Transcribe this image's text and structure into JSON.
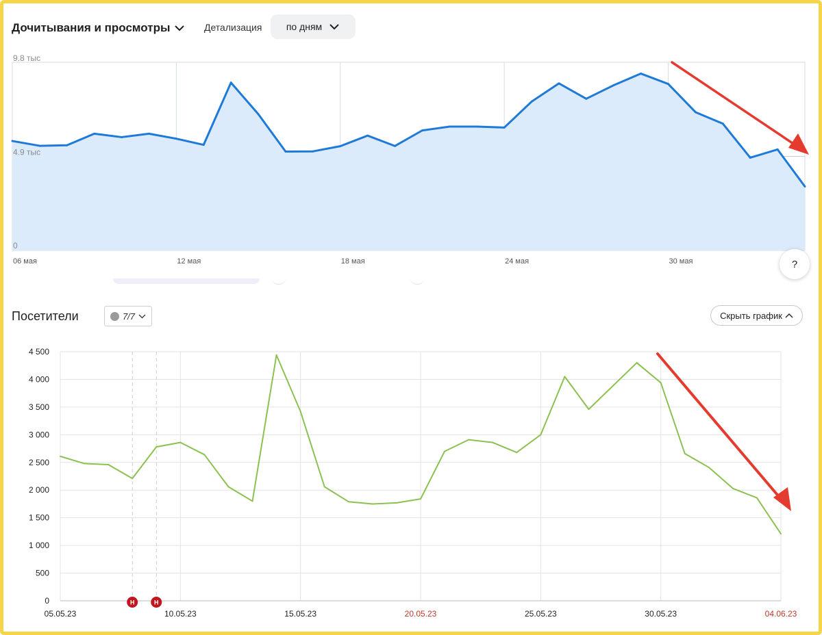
{
  "header_top": {
    "title": "Дочитывания и просмотры",
    "detail_label": "Детализация",
    "detail_value": "по дням"
  },
  "help_label": "?",
  "header_bottom": {
    "title": "Посетители",
    "goal_filter": "7/7",
    "hide_button": "Скрыть график"
  },
  "colors": {
    "top_line": "#1e7ad9",
    "top_fill": "#dcebfb",
    "visitors_line": "#8cc152",
    "arrow": "#e53b2e",
    "red_date": "#c0392b",
    "frame": "#f7d54a"
  },
  "chart_data": [
    {
      "type": "area",
      "y_tick_labels": [
        "0",
        "4.9 тыс",
        "9.8 тыс"
      ],
      "y_tick_values": [
        0,
        4900,
        9800
      ],
      "ylim": [
        0,
        9800
      ],
      "x_tick_labels": [
        "06 мая",
        "12 мая",
        "18 мая",
        "24 мая",
        "30 мая"
      ],
      "x_tick_index": [
        0,
        6,
        12,
        18,
        24
      ],
      "series": [
        {
          "values": [
            5700,
            5450,
            5480,
            6080,
            5900,
            6080,
            5820,
            5500,
            8740,
            7100,
            5150,
            5160,
            5430,
            5980,
            5440,
            6250,
            6450,
            6450,
            6400,
            7750,
            8700,
            7900,
            8600,
            9210,
            8670,
            7200,
            6600,
            4830,
            5260,
            3330
          ]
        }
      ],
      "grid": true
    },
    {
      "type": "line",
      "y_tick_labels": [
        "0",
        "500",
        "1 000",
        "1 500",
        "2 000",
        "2 500",
        "3 000",
        "3 500",
        "4 000",
        "4 500"
      ],
      "ylim": [
        0,
        4500
      ],
      "x_tick_labels": [
        "05.05.23",
        "10.05.23",
        "15.05.23",
        "20.05.23",
        "25.05.23",
        "30.05.23",
        "04.06.23"
      ],
      "x_tick_index": [
        0,
        5,
        10,
        15,
        20,
        25,
        30
      ],
      "weekend_ticks": [
        false,
        false,
        false,
        true,
        false,
        false,
        true
      ],
      "annotation_markers": [
        {
          "label": "Н",
          "x_index": 3.0
        },
        {
          "label": "Н",
          "x_index": 4.0
        }
      ],
      "series": [
        {
          "values": [
            2610,
            2480,
            2460,
            2210,
            2780,
            2860,
            2640,
            2060,
            1800,
            4440,
            3420,
            2060,
            1790,
            1750,
            1770,
            1840,
            2700,
            2910,
            2860,
            2680,
            3000,
            4050,
            3460,
            3880,
            4300,
            3940,
            2660,
            2410,
            2030,
            1860,
            1210
          ]
        }
      ],
      "grid": true
    }
  ]
}
